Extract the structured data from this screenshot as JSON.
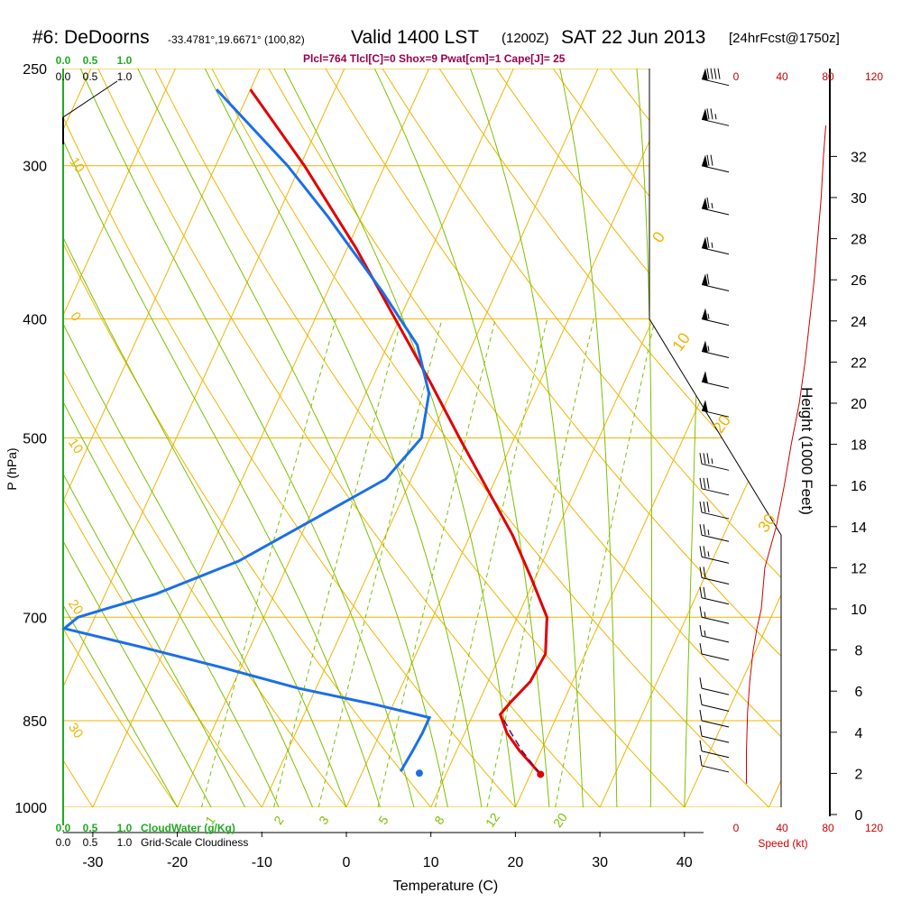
{
  "header": {
    "station": "#6: DeDoorns",
    "coords": "-33.4781°,19.6671° (100,82)",
    "valid": "Valid 1400 LST",
    "zulu": "(1200Z)",
    "date": "SAT 22 Jun 2013",
    "forecast": "[24hrFcst@1750z]",
    "params": "Plcl=764 Tlcl[C]=0 Shox=9 Pwat[cm]=1 Cape[J]= 25"
  },
  "colors": {
    "isobar": "#f0b400",
    "isotherm": "#f0b400",
    "dry_adiabat": "#f0b400",
    "moist_adiabat": "#7cc000",
    "mixing_ratio": "#7cc000",
    "temperature": "#e00000",
    "dewpoint": "#1a6fe8",
    "parcel": "#60105e",
    "cloudwater": "#22aa22",
    "speed": "#cc0000"
  },
  "scales": {
    "cloudwater_top": [
      "0.0",
      "0.5",
      "1.0"
    ],
    "cloudiness_top": [
      "0.0",
      "0.5",
      "1.0"
    ],
    "cloudwater_bottom": [
      "0.0",
      "0.5",
      "1.0"
    ],
    "cloudiness_bottom": [
      "0.0",
      "0.5",
      "1.0"
    ],
    "cloudwater_label": "CloudWater (g/Kg)",
    "cloudiness_label": "Grid-Scale Cloudiness",
    "speed_ticks": [
      "0",
      "40",
      "80",
      "120"
    ],
    "speed_label": "Speed (kt)"
  },
  "chart_data": {
    "type": "line",
    "title": "",
    "xlabel": "Temperature (C)",
    "ylabel": "P (hPa)",
    "y2label": "Height (1000 Feet)",
    "x_ticks": [
      "-30",
      "-20",
      "-10",
      "0",
      "10",
      "20",
      "30",
      "40"
    ],
    "p_ticks": [
      "250",
      "300",
      "400",
      "500",
      "700",
      "850",
      "1000"
    ],
    "height_ticks": [
      "0",
      "2",
      "4",
      "6",
      "8",
      "10",
      "12",
      "14",
      "16",
      "18",
      "20",
      "22",
      "24",
      "26",
      "28",
      "30",
      "32"
    ],
    "xlim": [
      -33,
      40
    ],
    "ylim": [
      1000,
      250
    ],
    "dry_adiabat_labels": [
      {
        "text": "-10",
        "p": 300
      },
      {
        "text": "0",
        "p": 400
      },
      {
        "text": "10",
        "p": 510
      },
      {
        "text": "20",
        "p": 690
      },
      {
        "text": "30",
        "p": 870
      }
    ],
    "moist_adiabat_labels": [
      {
        "text": "0",
        "p": 345
      },
      {
        "text": "10",
        "p": 420
      },
      {
        "text": "20",
        "p": 490
      },
      {
        "text": "30",
        "p": 590
      }
    ],
    "mixing_ratio_labels": [
      "1",
      "2",
      "3",
      "5",
      "8",
      "12",
      "20"
    ],
    "series": [
      {
        "name": "temperature",
        "points": [
          {
            "p": 940,
            "t": 21.2
          },
          {
            "p": 900,
            "t": 17.5
          },
          {
            "p": 870,
            "t": 15.0
          },
          {
            "p": 840,
            "t": 13.2
          },
          {
            "p": 820,
            "t": 13.8
          },
          {
            "p": 790,
            "t": 15.0
          },
          {
            "p": 750,
            "t": 15.3
          },
          {
            "p": 700,
            "t": 13.5
          },
          {
            "p": 650,
            "t": 9.5
          },
          {
            "p": 600,
            "t": 5.0
          },
          {
            "p": 550,
            "t": -0.5
          },
          {
            "p": 500,
            "t": -6.5
          },
          {
            "p": 450,
            "t": -13.0
          },
          {
            "p": 400,
            "t": -20.5
          },
          {
            "p": 350,
            "t": -29.0
          },
          {
            "p": 300,
            "t": -39.5
          },
          {
            "p": 260,
            "t": -50.0
          }
        ]
      },
      {
        "name": "dewpoint",
        "points": [
          {
            "p": 935,
            "t": 4.5
          },
          {
            "p": 900,
            "t": 4.8
          },
          {
            "p": 870,
            "t": 5.0
          },
          {
            "p": 845,
            "t": 5.0
          },
          {
            "p": 825,
            "t": -2.0
          },
          {
            "p": 800,
            "t": -12.0
          },
          {
            "p": 770,
            "t": -22.0
          },
          {
            "p": 740,
            "t": -33.0
          },
          {
            "p": 715,
            "t": -43.0
          },
          {
            "p": 700,
            "t": -42.0
          },
          {
            "p": 670,
            "t": -34.0
          },
          {
            "p": 630,
            "t": -26.0
          },
          {
            "p": 580,
            "t": -19.0
          },
          {
            "p": 540,
            "t": -13.0
          },
          {
            "p": 500,
            "t": -11.0
          },
          {
            "p": 460,
            "t": -12.5
          },
          {
            "p": 420,
            "t": -16.5
          },
          {
            "p": 380,
            "t": -23.5
          },
          {
            "p": 330,
            "t": -34.0
          },
          {
            "p": 300,
            "t": -41.5
          },
          {
            "p": 260,
            "t": -54.0
          }
        ]
      },
      {
        "name": "parcel",
        "points": [
          {
            "p": 940,
            "t": 21.2
          },
          {
            "p": 900,
            "t": 17.8
          },
          {
            "p": 870,
            "t": 15.5
          },
          {
            "p": 843,
            "t": 13.5
          }
        ]
      },
      {
        "name": "surface_dewpoint",
        "points": [
          {
            "p": 938,
            "t": 6.8
          }
        ]
      },
      {
        "name": "wind_speed_profile",
        "points": [
          {
            "z": 1.5,
            "kt": 9
          },
          {
            "z": 3,
            "kt": 9
          },
          {
            "z": 5,
            "kt": 10
          },
          {
            "z": 6.5,
            "kt": 12
          },
          {
            "z": 8,
            "kt": 15
          },
          {
            "z": 9,
            "kt": 18
          },
          {
            "z": 10,
            "kt": 22
          },
          {
            "z": 12,
            "kt": 25
          },
          {
            "z": 14,
            "kt": 35
          },
          {
            "z": 16,
            "kt": 42
          },
          {
            "z": 18,
            "kt": 48
          },
          {
            "z": 20,
            "kt": 55
          },
          {
            "z": 22,
            "kt": 60
          },
          {
            "z": 24,
            "kt": 64
          },
          {
            "z": 26,
            "kt": 68
          },
          {
            "z": 28,
            "kt": 71
          },
          {
            "z": 30,
            "kt": 74
          },
          {
            "z": 32,
            "kt": 76
          },
          {
            "z": 33.5,
            "kt": 78
          }
        ]
      }
    ],
    "wind_barbs": [
      {
        "p": 255,
        "spd": 90
      },
      {
        "p": 275,
        "spd": 75
      },
      {
        "p": 300,
        "spd": 70
      },
      {
        "p": 325,
        "spd": 65
      },
      {
        "p": 350,
        "spd": 65
      },
      {
        "p": 375,
        "spd": 60
      },
      {
        "p": 400,
        "spd": 55
      },
      {
        "p": 425,
        "spd": 55
      },
      {
        "p": 450,
        "spd": 50
      },
      {
        "p": 475,
        "spd": 50
      },
      {
        "p": 525,
        "spd": 35
      },
      {
        "p": 550,
        "spd": 30
      },
      {
        "p": 575,
        "spd": 30
      },
      {
        "p": 600,
        "spd": 25
      },
      {
        "p": 625,
        "spd": 25
      },
      {
        "p": 650,
        "spd": 20
      },
      {
        "p": 675,
        "spd": 20
      },
      {
        "p": 700,
        "spd": 15
      },
      {
        "p": 725,
        "spd": 15
      },
      {
        "p": 750,
        "spd": 10
      },
      {
        "p": 800,
        "spd": 10
      },
      {
        "p": 825,
        "spd": 10
      },
      {
        "p": 850,
        "spd": 10
      },
      {
        "p": 875,
        "spd": 10
      },
      {
        "p": 900,
        "spd": 10
      },
      {
        "p": 925,
        "spd": 10
      }
    ]
  }
}
